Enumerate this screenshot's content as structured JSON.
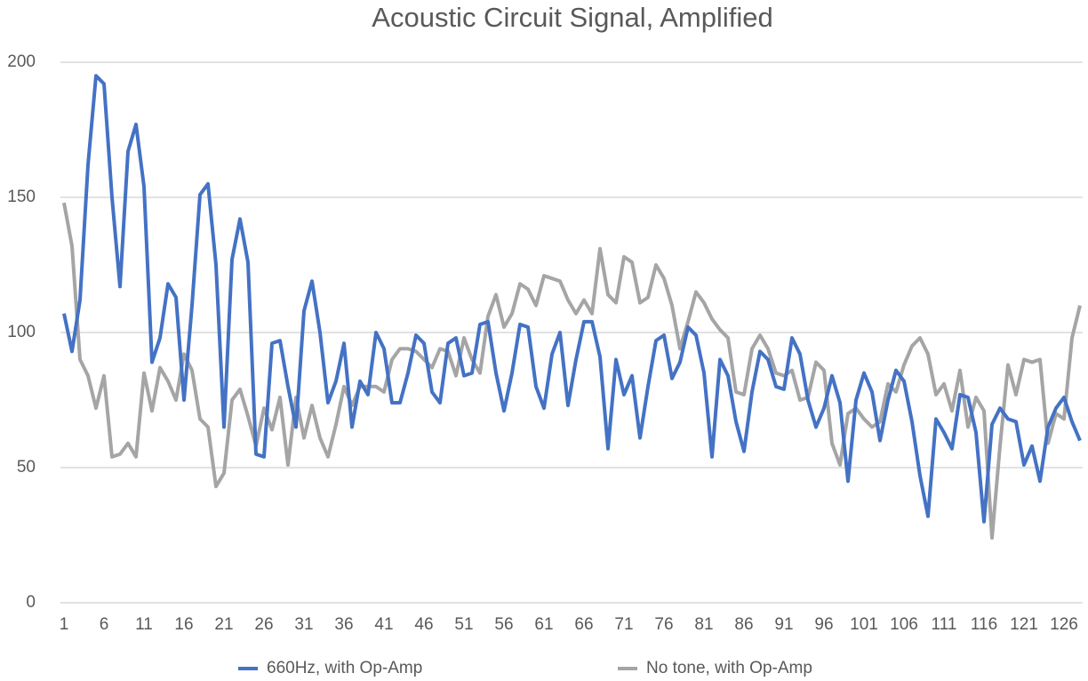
{
  "chart_data": {
    "type": "line",
    "title": "Acoustic Circuit Signal, Amplified",
    "categories": [
      "1",
      null,
      null,
      null,
      null,
      "6",
      null,
      null,
      null,
      null,
      "11",
      null,
      null,
      null,
      null,
      "16",
      null,
      null,
      null,
      null,
      "21",
      null,
      null,
      null,
      null,
      "26",
      null,
      null,
      null,
      null,
      "31",
      null,
      null,
      null,
      null,
      "36",
      null,
      null,
      null,
      null,
      "41",
      null,
      null,
      null,
      null,
      "46",
      null,
      null,
      null,
      null,
      "51",
      null,
      null,
      null,
      null,
      "56",
      null,
      null,
      null,
      null,
      "61",
      null,
      null,
      null,
      null,
      "66",
      null,
      null,
      null,
      null,
      "71",
      null,
      null,
      null,
      null,
      "76",
      null,
      null,
      null,
      null,
      "81",
      null,
      null,
      null,
      null,
      "86",
      null,
      null,
      null,
      null,
      "91",
      null,
      null,
      null,
      null,
      "96",
      null,
      null,
      null,
      null,
      "101",
      null,
      null,
      null,
      null,
      "106",
      null,
      null,
      null,
      null,
      "111",
      null,
      null,
      null,
      null,
      "116",
      null,
      null,
      null,
      null,
      "121",
      null,
      null,
      null,
      null,
      "126",
      null,
      null
    ],
    "series": [
      {
        "name": "660Hz, with Op-Amp",
        "color": "#4472c4",
        "values": [
          107,
          93,
          112,
          162,
          195,
          192,
          150,
          117,
          167,
          177,
          154,
          89,
          98,
          118,
          113,
          75,
          110,
          151,
          155,
          125,
          65,
          127,
          142,
          126,
          55,
          54,
          96,
          97,
          80,
          65,
          108,
          119,
          100,
          74,
          82,
          96,
          65,
          82,
          77,
          100,
          94,
          74,
          74,
          85,
          99,
          96,
          78,
          74,
          96,
          98,
          84,
          85,
          103,
          104,
          85,
          71,
          85,
          103,
          102,
          80,
          72,
          92,
          100,
          73,
          90,
          104,
          104,
          91,
          57,
          90,
          77,
          84,
          61,
          80,
          97,
          99,
          83,
          89,
          102,
          99,
          85,
          54,
          90,
          84,
          67,
          56,
          78,
          93,
          90,
          80,
          79,
          98,
          92,
          75,
          65,
          72,
          84,
          74,
          45,
          75,
          85,
          78,
          60,
          75,
          86,
          82,
          67,
          47,
          32,
          68,
          63,
          57,
          77,
          76,
          63,
          30,
          66,
          72,
          68,
          67,
          51,
          58,
          45,
          65,
          72,
          76,
          67,
          60
        ]
      },
      {
        "name": "No tone, with Op-Amp",
        "color": "#a5a5a5",
        "values": [
          148,
          132,
          90,
          84,
          72,
          84,
          54,
          55,
          59,
          54,
          85,
          71,
          87,
          82,
          75,
          92,
          86,
          68,
          65,
          43,
          48,
          75,
          79,
          69,
          58,
          72,
          64,
          76,
          51,
          76,
          61,
          73,
          61,
          54,
          66,
          80,
          73,
          80,
          80,
          80,
          78,
          90,
          94,
          94,
          93,
          90,
          87,
          94,
          93,
          84,
          98,
          90,
          85,
          106,
          114,
          102,
          107,
          118,
          116,
          110,
          121,
          120,
          119,
          112,
          107,
          112,
          107,
          131,
          114,
          111,
          128,
          126,
          111,
          113,
          125,
          120,
          110,
          94,
          104,
          115,
          111,
          105,
          101,
          98,
          78,
          77,
          94,
          99,
          94,
          85,
          84,
          86,
          75,
          76,
          89,
          86,
          59,
          51,
          70,
          72,
          68,
          65,
          67,
          81,
          78,
          88,
          95,
          98,
          92,
          77,
          81,
          71,
          86,
          65,
          76,
          71,
          24,
          58,
          88,
          77,
          90,
          89,
          90,
          59,
          70,
          68,
          98,
          110
        ]
      }
    ],
    "ylim": [
      0,
      200
    ],
    "yticks": [
      0,
      50,
      100,
      150,
      200
    ],
    "grid": true,
    "legend": "bottom"
  }
}
